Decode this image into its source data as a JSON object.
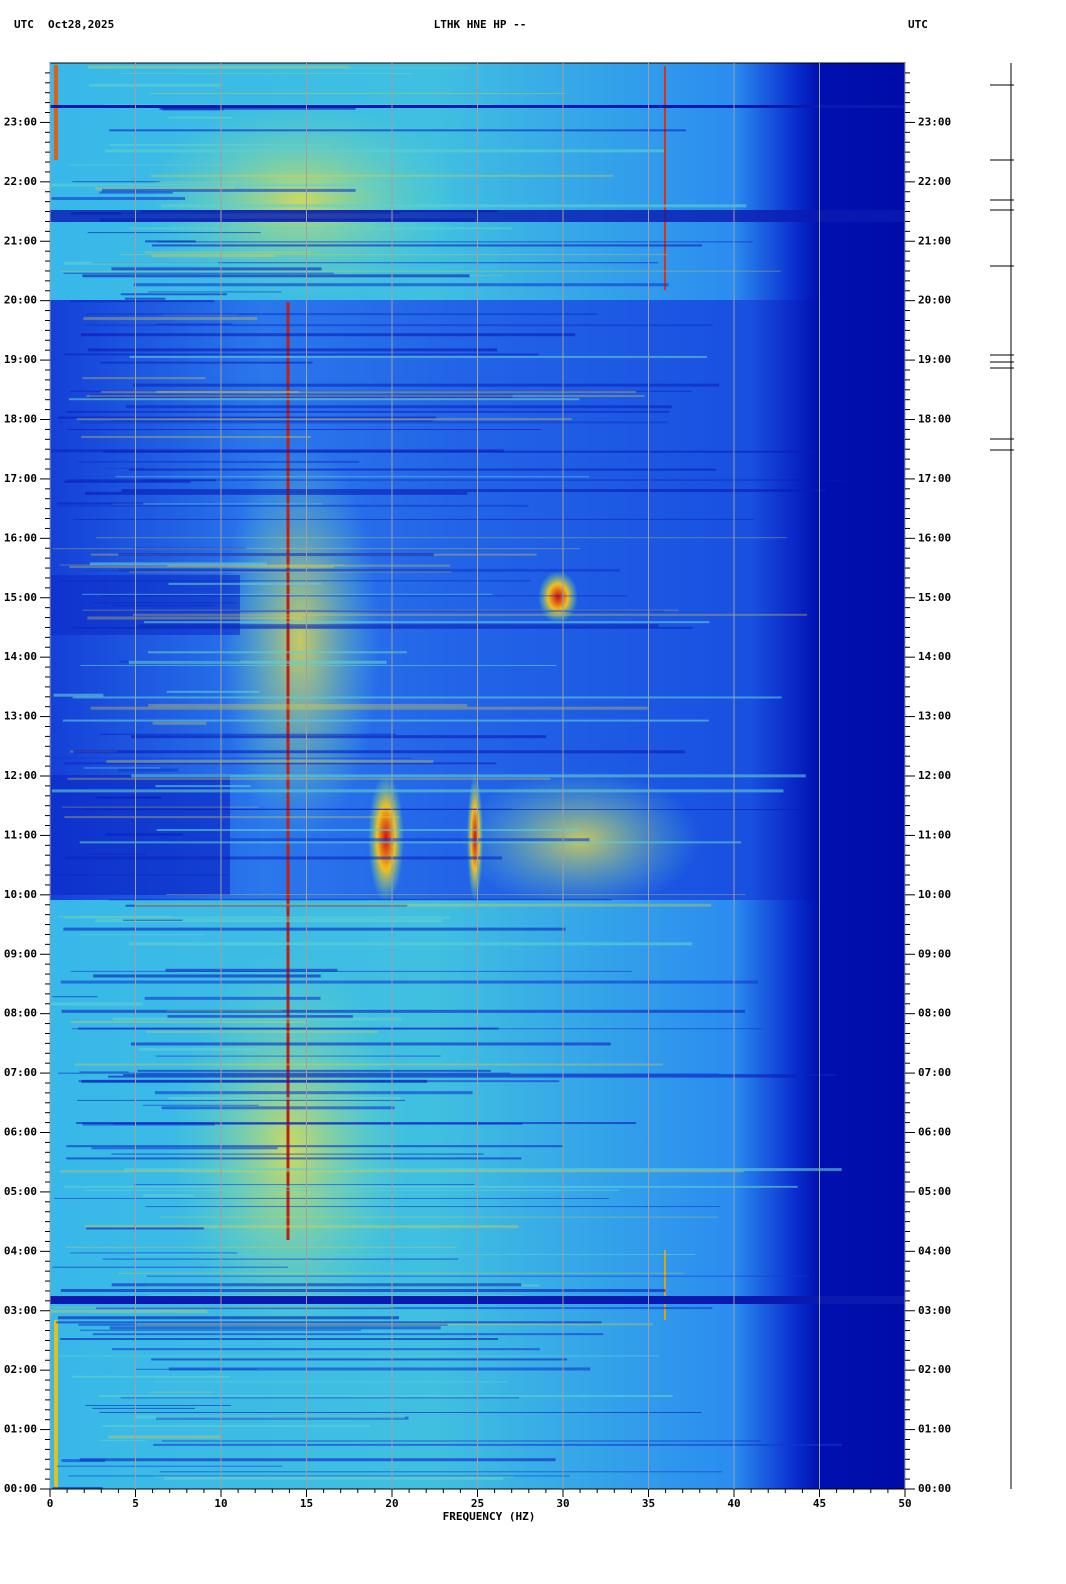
{
  "chart_data": {
    "type": "spectrogram",
    "title": "LTHK HNE HP --",
    "timezone_left": "UTC",
    "date": "Oct28,2025",
    "timezone_right": "UTC",
    "xlabel": "FREQUENCY (HZ)",
    "xlim": [
      0,
      50
    ],
    "xticks": [
      0,
      5,
      10,
      15,
      20,
      25,
      30,
      35,
      40,
      45,
      50
    ],
    "xminor_step": 1,
    "ylim": [
      0,
      24
    ],
    "yticks": [
      {
        "value": 0,
        "label": "00:00"
      },
      {
        "value": 1,
        "label": "01:00"
      },
      {
        "value": 2,
        "label": "02:00"
      },
      {
        "value": 3,
        "label": "03:00"
      },
      {
        "value": 4,
        "label": "04:00"
      },
      {
        "value": 5,
        "label": "05:00"
      },
      {
        "value": 6,
        "label": "06:00"
      },
      {
        "value": 7,
        "label": "07:00"
      },
      {
        "value": 8,
        "label": "08:00"
      },
      {
        "value": 9,
        "label": "09:00"
      },
      {
        "value": 10,
        "label": "10:00"
      },
      {
        "value": 11,
        "label": "11:00"
      },
      {
        "value": 12,
        "label": "12:00"
      },
      {
        "value": 13,
        "label": "13:00"
      },
      {
        "value": 14,
        "label": "14:00"
      },
      {
        "value": 15,
        "label": "15:00"
      },
      {
        "value": 16,
        "label": "16:00"
      },
      {
        "value": 17,
        "label": "17:00"
      },
      {
        "value": 18,
        "label": "18:00"
      },
      {
        "value": 19,
        "label": "19:00"
      },
      {
        "value": 20,
        "label": "20:00"
      },
      {
        "value": 21,
        "label": "21:00"
      },
      {
        "value": 22,
        "label": "22:00"
      },
      {
        "value": 23,
        "label": "23:00"
      }
    ],
    "yminor_divisions": 6,
    "grid": true,
    "grid_color": "#a0a0a0"
  }
}
